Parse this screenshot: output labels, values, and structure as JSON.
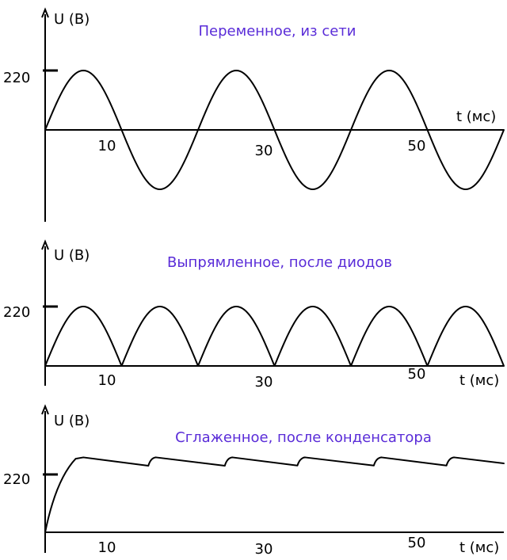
{
  "chart_data": [
    {
      "type": "line",
      "title": "Переменное, из сети",
      "ylabel": "U (В)",
      "xlabel": "t (мс)",
      "y_tick": "220",
      "x_ticks": [
        "10",
        "30",
        "50"
      ],
      "x_tick_values": [
        10,
        30,
        50
      ],
      "amplitude": 220,
      "period_ms": 20,
      "xlim": [
        0,
        60
      ],
      "ylim": [
        -240,
        240
      ],
      "series": [
        {
          "values_desc": "sine",
          "x": [
            0,
            2.5,
            5,
            7.5,
            10,
            12.5,
            15,
            17.5,
            20,
            22.5,
            25,
            27.5,
            30,
            32.5,
            35,
            37.5,
            40,
            42.5,
            45,
            47.5,
            50,
            52.5,
            55,
            57.5,
            60
          ],
          "y": [
            0,
            156,
            220,
            156,
            0,
            -156,
            -220,
            -156,
            0,
            156,
            220,
            156,
            0,
            -156,
            -220,
            -156,
            0,
            156,
            220,
            156,
            0,
            -156,
            -220,
            -156,
            0
          ]
        }
      ]
    },
    {
      "type": "line",
      "title": "Выпрямленное, после диодов",
      "ylabel": "U (В)",
      "xlabel": "t (мс)",
      "y_tick": "220",
      "x_ticks": [
        "10",
        "30",
        "50"
      ],
      "x_tick_values": [
        10,
        30,
        50
      ],
      "xlim": [
        0,
        60
      ],
      "ylim": [
        0,
        240
      ],
      "series": [
        {
          "x": [
            0,
            2.5,
            5,
            7.5,
            10,
            12.5,
            15,
            17.5,
            20,
            22.5,
            25,
            27.5,
            30,
            32.5,
            35,
            37.5,
            40,
            42.5,
            45,
            47.5,
            50,
            52.5,
            55,
            57.5,
            60
          ],
          "y": [
            0,
            156,
            220,
            156,
            0,
            156,
            220,
            156,
            0,
            156,
            220,
            156,
            0,
            156,
            220,
            156,
            0,
            156,
            220,
            156,
            0,
            156,
            220,
            156,
            0
          ]
        }
      ]
    },
    {
      "type": "line",
      "title": "Сглаженное, после конденсатора",
      "ylabel": "U (В)",
      "xlabel": "t (мс)",
      "y_tick": "220",
      "x_ticks": [
        "10",
        "30",
        "50"
      ],
      "x_tick_values": [
        10,
        30,
        50
      ],
      "xlim": [
        0,
        60
      ],
      "ylim": [
        0,
        300
      ],
      "series": [
        {
          "x": [
            0,
            2,
            4,
            5,
            13.5,
            14.5,
            23.5,
            24.5,
            33,
            34,
            43,
            44,
            52.5,
            53.5,
            60
          ],
          "y": [
            0,
            180,
            280,
            285,
            253,
            285,
            253,
            285,
            254,
            285,
            254,
            285,
            254,
            285,
            262
          ]
        }
      ]
    }
  ]
}
